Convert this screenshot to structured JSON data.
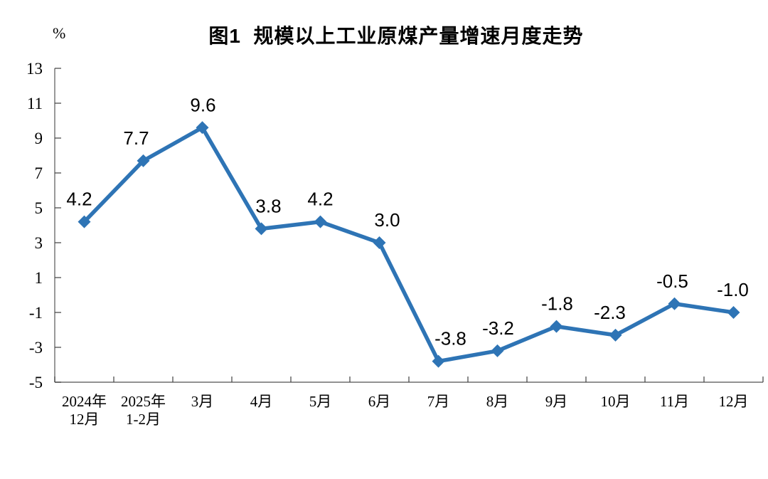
{
  "figure": {
    "title": "图1  规模以上工业原煤产量增速月度走势",
    "unit_label": "%"
  },
  "chart_data": {
    "type": "line",
    "title": "图1  规模以上工业原煤产量增速月度走势",
    "xlabel": "",
    "ylabel": "%",
    "categories": [
      "2024年\n12月",
      "2025年\n1-2月",
      "3月",
      "4月",
      "5月",
      "6月",
      "7月",
      "8月",
      "9月",
      "10月",
      "11月",
      "12月"
    ],
    "values": [
      4.2,
      7.7,
      9.6,
      3.8,
      4.2,
      3.0,
      -3.8,
      -3.2,
      -1.8,
      -2.3,
      -0.5,
      -1.0
    ],
    "ylim": [
      -5,
      13
    ],
    "yticks": [
      13,
      11,
      9,
      7,
      5,
      3,
      1,
      -1,
      -3,
      -5
    ],
    "grid": false,
    "legend": "none",
    "marker": "diamond",
    "line_color": "#2E74B5",
    "axis_color": "#6E6E6E",
    "tick_color": "#404040",
    "text_color": "#000000",
    "data_labels_shown": true
  }
}
